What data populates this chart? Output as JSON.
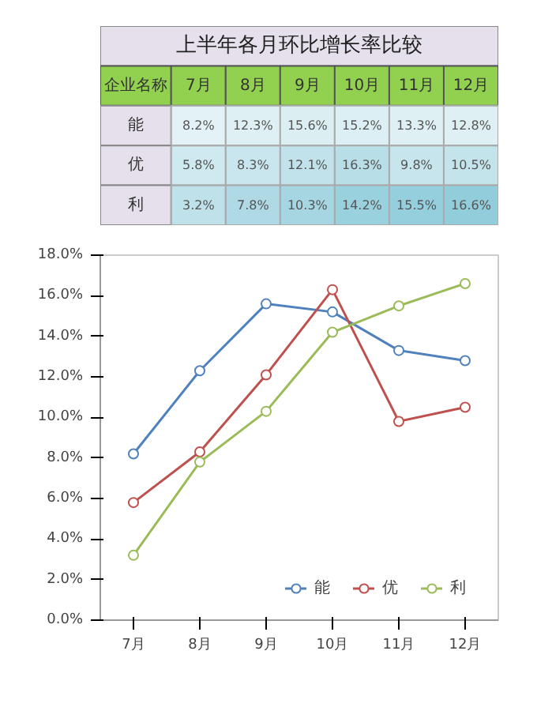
{
  "chart_data": [
    {
      "type": "heatmap",
      "title": "上半年各月环比增长率比较",
      "annotations": [
        "企业名称"
      ],
      "categories": [
        "7月",
        "8月",
        "9月",
        "10月",
        "11月",
        "12月"
      ],
      "y_categories": [
        "能",
        "优",
        "利"
      ],
      "cells": [
        [
          8.2,
          12.3,
          15.6,
          15.2,
          13.3,
          12.8
        ],
        [
          5.8,
          8.3,
          12.1,
          16.3,
          9.8,
          10.5
        ],
        [
          3.2,
          7.8,
          10.3,
          14.2,
          15.5,
          16.6
        ]
      ],
      "cell_labels": [
        [
          "8.2%",
          "12.3%",
          "15.6%",
          "15.2%",
          "13.3%",
          "12.8%"
        ],
        [
          "5.8%",
          "8.3%",
          "12.1%",
          "16.3%",
          "9.8%",
          "10.5%"
        ],
        [
          "3.2%",
          "7.8%",
          "10.3%",
          "14.2%",
          "15.5%",
          "16.6%"
        ]
      ]
    },
    {
      "type": "line",
      "categories": [
        "7月",
        "8月",
        "9月",
        "10月",
        "11月",
        "12月"
      ],
      "series": [
        {
          "name": "能",
          "color": "#4f81bd",
          "values": [
            8.2,
            12.3,
            15.6,
            15.2,
            13.3,
            12.8
          ]
        },
        {
          "name": "优",
          "color": "#c0504d",
          "values": [
            5.8,
            8.3,
            12.1,
            16.3,
            9.8,
            10.5
          ]
        },
        {
          "name": "利",
          "color": "#9bbb59",
          "values": [
            3.2,
            7.8,
            10.3,
            14.2,
            15.5,
            16.6
          ]
        }
      ],
      "ylim": [
        0,
        18
      ],
      "yticks": [
        {
          "value": 0,
          "label": "0.0%"
        },
        {
          "value": 2,
          "label": "2.0%"
        },
        {
          "value": 4,
          "label": "4.0%"
        },
        {
          "value": 6,
          "label": "6.0%"
        },
        {
          "value": 8,
          "label": "8.0%"
        },
        {
          "value": 10,
          "label": "10.0%"
        },
        {
          "value": 12,
          "label": "12.0%"
        },
        {
          "value": 14,
          "label": "14.0%"
        },
        {
          "value": 16,
          "label": "16.0%"
        },
        {
          "value": 18,
          "label": "18.0%"
        }
      ],
      "grid": false,
      "legend": "bottom right",
      "marker": "circle",
      "line_style": "solid"
    }
  ]
}
